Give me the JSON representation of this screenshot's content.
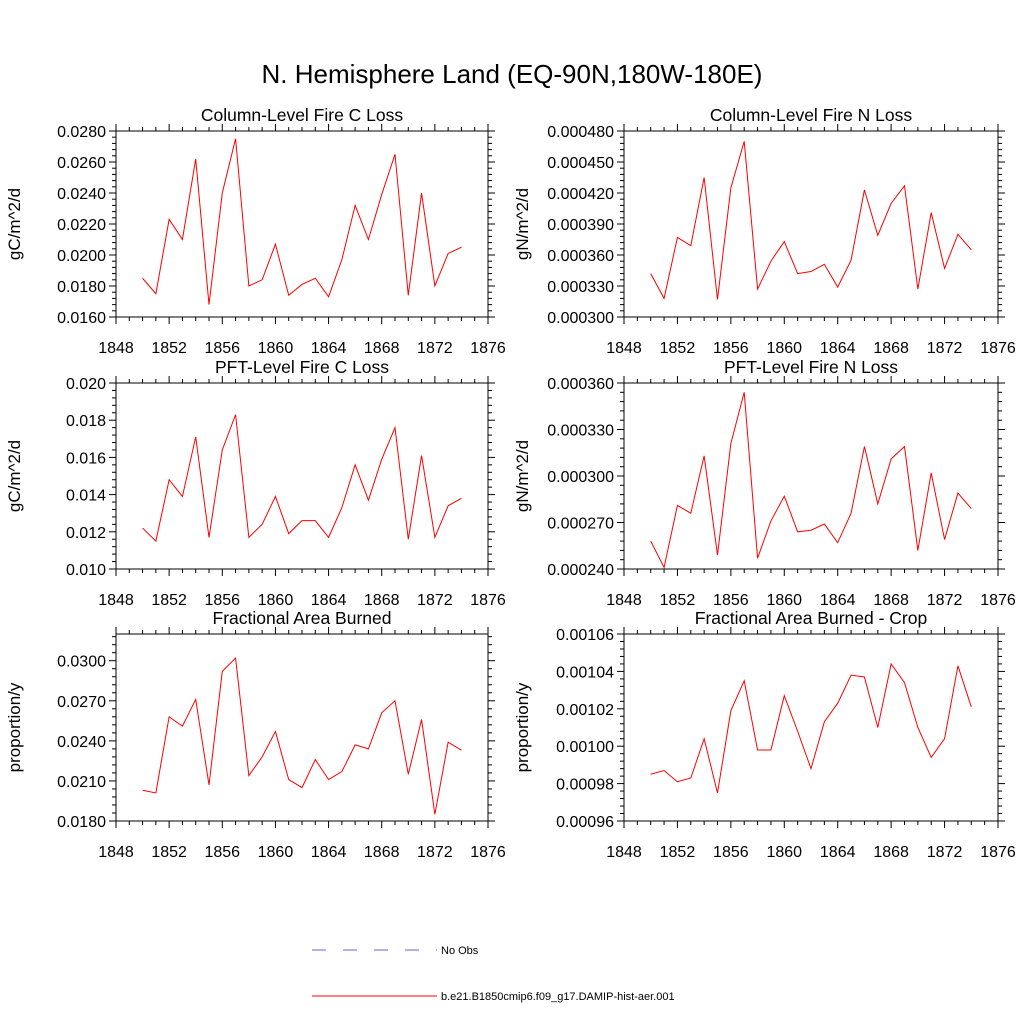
{
  "title": "N. Hemisphere Land (EQ-90N,180W-180E)",
  "colors": {
    "model": "#ff0000",
    "obs": "#6666cc",
    "axis": "#000000"
  },
  "legend": [
    {
      "label": "No Obs",
      "style": "dashed",
      "color": "#6666cc"
    },
    {
      "label": "b.e21.B1850cmip6.f09_g17.DAMIP-hist-aer.001",
      "style": "solid",
      "color": "#ff0000"
    }
  ],
  "chart_data": [
    {
      "type": "line",
      "title": "Column-Level Fire C Loss",
      "xlabel": "",
      "ylabel": "gC/m^2/d",
      "xlim": [
        1848,
        1876
      ],
      "xticks": [
        "1848",
        "1852",
        "1856",
        "1860",
        "1864",
        "1868",
        "1872",
        "1876"
      ],
      "ylim": [
        0.016,
        0.028
      ],
      "yticks": [
        "0.0160",
        "0.0180",
        "0.0200",
        "0.0220",
        "0.0240",
        "0.0260",
        "0.0280"
      ],
      "x": [
        1850,
        1851,
        1852,
        1853,
        1854,
        1855,
        1856,
        1857,
        1858,
        1859,
        1860,
        1861,
        1862,
        1863,
        1864,
        1865,
        1866,
        1867,
        1868,
        1869,
        1870,
        1871,
        1872,
        1873,
        1874
      ],
      "series": [
        {
          "name": "b.e21.B1850cmip6.f09_g17.DAMIP-hist-aer.001",
          "values": [
            0.0185,
            0.0175,
            0.0223,
            0.021,
            0.0262,
            0.0168,
            0.024,
            0.0275,
            0.018,
            0.0184,
            0.0207,
            0.0174,
            0.0181,
            0.0185,
            0.0173,
            0.0197,
            0.0232,
            0.021,
            0.0239,
            0.0265,
            0.0174,
            0.024,
            0.018,
            0.0201,
            0.0205
          ]
        }
      ]
    },
    {
      "type": "line",
      "title": "Column-Level Fire N Loss",
      "xlabel": "",
      "ylabel": "gN/m^2/d",
      "xlim": [
        1848,
        1876
      ],
      "xticks": [
        "1848",
        "1852",
        "1856",
        "1860",
        "1864",
        "1868",
        "1872",
        "1876"
      ],
      "ylim": [
        0.0003,
        0.00048
      ],
      "yticks": [
        "0.000300",
        "0.000330",
        "0.000360",
        "0.000390",
        "0.000420",
        "0.000450",
        "0.000480"
      ],
      "x": [
        1850,
        1851,
        1852,
        1853,
        1854,
        1855,
        1856,
        1857,
        1858,
        1859,
        1860,
        1861,
        1862,
        1863,
        1864,
        1865,
        1866,
        1867,
        1868,
        1869,
        1870,
        1871,
        1872,
        1873,
        1874
      ],
      "series": [
        {
          "name": "b.e21.B1850cmip6.f09_g17.DAMIP-hist-aer.001",
          "values": [
            0.000342,
            0.000318,
            0.000377,
            0.000369,
            0.000435,
            0.000317,
            0.000425,
            0.00047,
            0.000327,
            0.000354,
            0.000373,
            0.000342,
            0.000344,
            0.000351,
            0.000329,
            0.000355,
            0.000423,
            0.000379,
            0.00041,
            0.000427,
            0.000327,
            0.000401,
            0.000347,
            0.00038,
            0.000365
          ]
        }
      ]
    },
    {
      "type": "line",
      "title": "PFT-Level Fire C Loss",
      "xlabel": "",
      "ylabel": "gC/m^2/d",
      "xlim": [
        1848,
        1876
      ],
      "xticks": [
        "1848",
        "1852",
        "1856",
        "1860",
        "1864",
        "1868",
        "1872",
        "1876"
      ],
      "ylim": [
        0.01,
        0.02
      ],
      "yticks": [
        "0.010",
        "0.012",
        "0.014",
        "0.016",
        "0.018",
        "0.020"
      ],
      "x": [
        1850,
        1851,
        1852,
        1853,
        1854,
        1855,
        1856,
        1857,
        1858,
        1859,
        1860,
        1861,
        1862,
        1863,
        1864,
        1865,
        1866,
        1867,
        1868,
        1869,
        1870,
        1871,
        1872,
        1873,
        1874
      ],
      "series": [
        {
          "name": "b.e21.B1850cmip6.f09_g17.DAMIP-hist-aer.001",
          "values": [
            0.0122,
            0.0115,
            0.0148,
            0.0139,
            0.0171,
            0.0117,
            0.0164,
            0.0183,
            0.0117,
            0.0124,
            0.0139,
            0.0119,
            0.0126,
            0.0126,
            0.0117,
            0.0133,
            0.0156,
            0.0137,
            0.0159,
            0.0176,
            0.0116,
            0.0161,
            0.0117,
            0.0134,
            0.0138
          ]
        }
      ]
    },
    {
      "type": "line",
      "title": "PFT-Level Fire N Loss",
      "xlabel": "",
      "ylabel": "gN/m^2/d",
      "xlim": [
        1848,
        1876
      ],
      "xticks": [
        "1848",
        "1852",
        "1856",
        "1860",
        "1864",
        "1868",
        "1872",
        "1876"
      ],
      "ylim": [
        0.00024,
        0.00036
      ],
      "yticks": [
        "0.000240",
        "0.000270",
        "0.000300",
        "0.000330",
        "0.000360"
      ],
      "x": [
        1850,
        1851,
        1852,
        1853,
        1854,
        1855,
        1856,
        1857,
        1858,
        1859,
        1860,
        1861,
        1862,
        1863,
        1864,
        1865,
        1866,
        1867,
        1868,
        1869,
        1870,
        1871,
        1872,
        1873,
        1874
      ],
      "series": [
        {
          "name": "b.e21.B1850cmip6.f09_g17.DAMIP-hist-aer.001",
          "values": [
            0.000258,
            0.000241,
            0.000281,
            0.000276,
            0.000313,
            0.000249,
            0.000321,
            0.000354,
            0.000247,
            0.000271,
            0.000287,
            0.000264,
            0.000265,
            0.000269,
            0.000257,
            0.000276,
            0.000319,
            0.000282,
            0.000311,
            0.000319,
            0.000252,
            0.000302,
            0.000259,
            0.000289,
            0.000279
          ]
        }
      ]
    },
    {
      "type": "line",
      "title": "Fractional Area Burned",
      "xlabel": "",
      "ylabel": "proportion/y",
      "xlim": [
        1848,
        1876
      ],
      "xticks": [
        "1848",
        "1852",
        "1856",
        "1860",
        "1864",
        "1868",
        "1872",
        "1876"
      ],
      "ylim": [
        0.018,
        0.032
      ],
      "yticks": [
        "0.0180",
        "0.0210",
        "0.0240",
        "0.0270",
        "0.0300"
      ],
      "x": [
        1850,
        1851,
        1852,
        1853,
        1854,
        1855,
        1856,
        1857,
        1858,
        1859,
        1860,
        1861,
        1862,
        1863,
        1864,
        1865,
        1866,
        1867,
        1868,
        1869,
        1870,
        1871,
        1872,
        1873,
        1874
      ],
      "series": [
        {
          "name": "b.e21.B1850cmip6.f09_g17.DAMIP-hist-aer.001",
          "values": [
            0.0203,
            0.0201,
            0.0258,
            0.0251,
            0.0271,
            0.0207,
            0.0292,
            0.0302,
            0.0214,
            0.0228,
            0.0247,
            0.0211,
            0.0205,
            0.0226,
            0.0211,
            0.0217,
            0.0237,
            0.0234,
            0.0261,
            0.027,
            0.0215,
            0.0256,
            0.0185,
            0.0239,
            0.0233
          ]
        }
      ]
    },
    {
      "type": "line",
      "title": "Fractional Area Burned - Crop",
      "xlabel": "",
      "ylabel": "proportion/y",
      "xlim": [
        1848,
        1876
      ],
      "xticks": [
        "1848",
        "1852",
        "1856",
        "1860",
        "1864",
        "1868",
        "1872",
        "1876"
      ],
      "ylim": [
        0.00096,
        0.00106
      ],
      "yticks": [
        "0.00096",
        "0.00098",
        "0.00100",
        "0.00102",
        "0.00104",
        "0.00106"
      ],
      "x": [
        1850,
        1851,
        1852,
        1853,
        1854,
        1855,
        1856,
        1857,
        1858,
        1859,
        1860,
        1861,
        1862,
        1863,
        1864,
        1865,
        1866,
        1867,
        1868,
        1869,
        1870,
        1871,
        1872,
        1873,
        1874
      ],
      "series": [
        {
          "name": "b.e21.B1850cmip6.f09_g17.DAMIP-hist-aer.001",
          "values": [
            0.000985,
            0.000987,
            0.000981,
            0.000983,
            0.001004,
            0.000975,
            0.001019,
            0.001035,
            0.000998,
            0.000998,
            0.001027,
            0.001008,
            0.000988,
            0.001013,
            0.001023,
            0.001038,
            0.001037,
            0.00101,
            0.001044,
            0.001034,
            0.00101,
            0.000994,
            0.001004,
            0.001043,
            0.001021
          ]
        }
      ]
    }
  ]
}
